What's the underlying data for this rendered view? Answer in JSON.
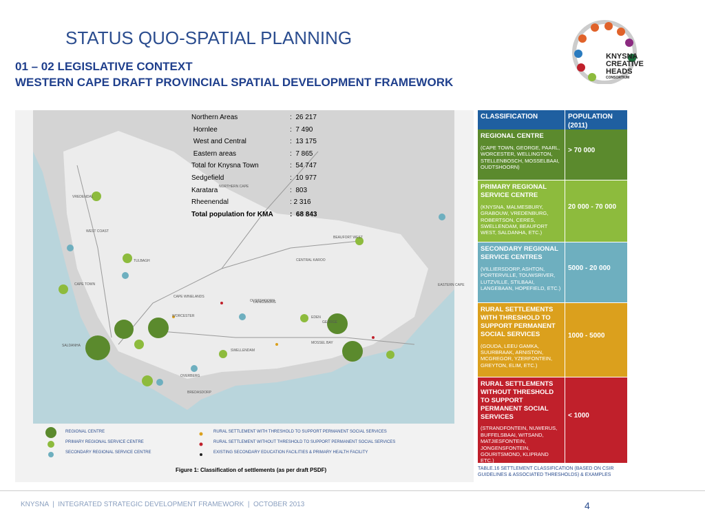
{
  "header": {
    "title": "STATUS QUO-SPATIAL PLANNING",
    "subtitle_lines": [
      "01 – 02 LEGISLATIVE CONTEXT",
      "WESTERN CAPE DRAFT PROVINCIAL SPATIAL DEVELOPMENT FRAMEWORK"
    ]
  },
  "logo": {
    "lines": [
      "KNYSNA",
      "CREATIVE",
      "HEADS",
      "CONSORTIUM"
    ]
  },
  "population": {
    "rows": [
      [
        "Northern Areas",
        ":  26 217"
      ],
      [
        " Hornlee",
        ":  7 490"
      ],
      [
        " West and Central",
        ":  13 175"
      ],
      [
        " Eastern areas",
        ":  7 865"
      ],
      [
        "Total for Knysna Town",
        ":  54 747"
      ],
      [
        "Sedgefield",
        ":  10 977"
      ],
      [
        "Karatara",
        ":  803"
      ],
      [
        "Rheenendal",
        ": 2 316"
      ],
      [
        "Total population for KMA",
        ":  68 843"
      ]
    ]
  },
  "map": {
    "labels": [
      "CAPE TOWN",
      "WORCESTER",
      "CAPE WINELANDS",
      "OUDTSHOORN",
      "GEORGE",
      "MOSSEL BAY",
      "BEAUFORT WEST",
      "CENTRAL KAROO",
      "EDEN",
      "OVERBERG",
      "BREDASDORP",
      "SWELLENDAM",
      "LAINGSBURG",
      "TULBAGH",
      "SALDANHA",
      "VREDENDAL",
      "WEST COAST",
      "EASTERN CAPE",
      "NORTHERN CAPE"
    ],
    "legend": [
      "REGIONAL CENTRE",
      "PRIMARY REGIONAL SERVICE CENTRE",
      "SECONDARY REGIONAL SERVICE CENTRE",
      "RURAL SETTLEMENT WITH THRESHOLD TO SUPPORT PERMANENT SOCIAL SERVICES",
      "RURAL SETTLEMENT WITHOUT THRESHOLD TO SUPPORT PERMANENT SOCIAL SERVICES",
      "EXISTING SECONDARY EDUCATION FACILITIES & PRIMARY HEALTH FACILITY"
    ],
    "caption": "Figure 1: Classification of settlements (as per draft PSDF)"
  },
  "classification": {
    "header": [
      "CLASSIFICATION",
      "POPULATION (2011)"
    ],
    "rows": [
      {
        "name": "REGIONAL CENTRE",
        "examples": "(CAPE TOWN, GEORGE, PAARL, WORCESTER, WELLINGTON, STELLENBOSCH, MOSSELBAAI, OUDTSHOORN)",
        "population": "> 70 000",
        "color": "#5b8a2d"
      },
      {
        "name": "PRIMARY REGIONAL SERVICE CENTRE",
        "examples": "(KNYSNA, MALMESBURY, GRABOUW, VREDENBURG, ROBERTSON, CERES, SWELLENDAM, BEAUFORT WEST, SALDANHA, ETC.)",
        "population": "20 000 - 70 000",
        "color": "#8dbb3d"
      },
      {
        "name": "SECONDARY REGIONAL SERVICE CENTRES",
        "examples": "(VILLIERSDORP, ASHTON, PORTERVILLE, TOUWSRIVER, LUTZVILLE, STILBAAI, LANGEBAAN, HOPEFIELD, ETC.)",
        "population": "5000 - 20 000",
        "color": "#6eafbf"
      },
      {
        "name": "RURAL SETTLEMENTS WITH THRESHOLD TO SUPPORT PERMANENT SOCIAL SERVICES",
        "examples": "(GOUDA, LEEU GAMKA, SUURBRAAK, ARNISTON, MCGREGOR, YZERFONTEIN, GREYTON, ELIM, ETC.)",
        "population": "1000 - 5000",
        "color": "#dba01d"
      },
      {
        "name": "RURAL SETTLEMENTS WITHOUT THRESHOLD TO SUPPORT PERMANENT SOCIAL SERVICES",
        "examples": "(STRANDFONTEIN, NUWERUS, BUFFELSBAAI, WITSAND, MATJIESFONTEIN, JONGENSFONTEIN, GOURITSMOND, KLIPRAND ETC.)",
        "population": "< 1000",
        "color": "#c0202b"
      }
    ],
    "caption": "TABLE.16 SETTLEMENT CLASSIFICATION (BASED ON CSIR GUIDELINES & ASSOCIATED THRESHOLDS) & EXAMPLES"
  },
  "footer": {
    "text": "KNYSNA  |  INTEGRATED STRATEGIC DEVELOPMENT FRAMEWORK  |  OCTOBER 2013",
    "page": "4"
  }
}
